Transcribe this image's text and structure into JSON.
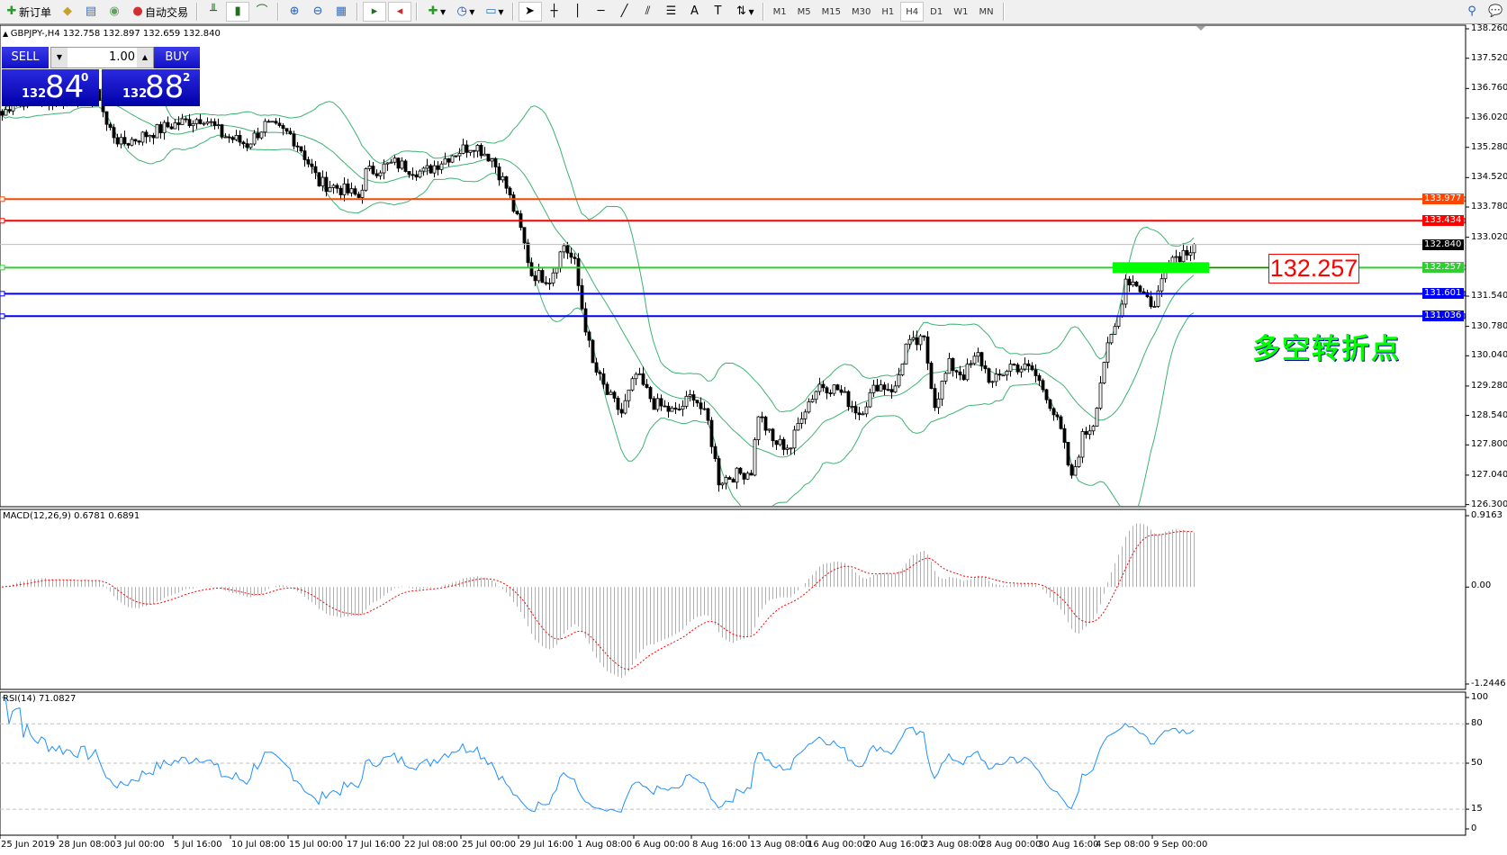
{
  "toolbar": {
    "new_order": "新订单",
    "auto_trading": "自动交易",
    "timeframes": [
      "M1",
      "M5",
      "M15",
      "M30",
      "H1",
      "H4",
      "D1",
      "W1",
      "MN"
    ],
    "active_timeframe": "H4"
  },
  "chart": {
    "symbol_info": "GBPJPY-,H4  132.758 132.897 132.659 132.840"
  },
  "trade_panel": {
    "sell": "SELL",
    "buy": "BUY",
    "lot": "1.00",
    "sell_price": {
      "prefix": "132",
      "big": "84",
      "sup": "0"
    },
    "buy_price": {
      "prefix": "132",
      "big": "88",
      "sup": "2"
    }
  },
  "price_axis": {
    "ticks": [
      "138.260",
      "137.520",
      "136.760",
      "136.020",
      "135.280",
      "134.520",
      "133.780",
      "133.020",
      "131.540",
      "130.780",
      "130.040",
      "129.280",
      "128.540",
      "127.800",
      "127.040",
      "126.300"
    ]
  },
  "levels": [
    {
      "price": "133.977",
      "color": "#ff4500"
    },
    {
      "price": "133.434",
      "color": "#ff0000"
    },
    {
      "price": "132.257",
      "color": "#32cd32"
    },
    {
      "price": "131.601",
      "color": "#0000ff"
    },
    {
      "price": "131.036",
      "color": "#0000ff"
    }
  ],
  "bid_line": {
    "price": "132.840",
    "color": "#000000"
  },
  "annotation": {
    "label": "132.257",
    "text": "多空转折点",
    "text_color": "#00ff00",
    "zone_color": "#00ff00"
  },
  "macd": {
    "label": "MACD(12,26,9) 0.6781 0.6891",
    "max": "0.9163",
    "zero": "0.00",
    "min": "-1.2446"
  },
  "rsi": {
    "label": "RSI(14) 71.0827",
    "ticks": [
      "100",
      "80",
      "50",
      "15",
      "0"
    ]
  },
  "time_axis": [
    "25 Jun 2019",
    "28 Jun 08:00",
    "3 Jul 00:00",
    "5 Jul 16:00",
    "10 Jul 08:00",
    "15 Jul 00:00",
    "17 Jul 16:00",
    "22 Jul 08:00",
    "25 Jul 00:00",
    "29 Jul 16:00",
    "1 Aug 08:00",
    "6 Aug 00:00",
    "8 Aug 16:00",
    "13 Aug 08:00",
    "16 Aug 00:00",
    "20 Aug 16:00",
    "23 Aug 08:00",
    "28 Aug 00:00",
    "30 Aug 16:00",
    "4 Sep 08:00",
    "9 Sep 00:00"
  ],
  "chart_data": {
    "type": "candlestick",
    "symbol": "GBPJPY-",
    "timeframe": "H4",
    "indicators": [
      "Bollinger Bands",
      "MACD(12,26,9)",
      "RSI(14)"
    ],
    "ylim": [
      126.3,
      138.26
    ],
    "close_path": [
      [
        0,
        136.09
      ],
      [
        3,
        136.45
      ],
      [
        27,
        136.57
      ],
      [
        29,
        135.84
      ],
      [
        33,
        135.36
      ],
      [
        40,
        135.6
      ],
      [
        47,
        135.84
      ],
      [
        56,
        136.04
      ],
      [
        61,
        135.6
      ],
      [
        68,
        135.36
      ],
      [
        73,
        135.84
      ],
      [
        80,
        135.6
      ],
      [
        83,
        135.24
      ],
      [
        88,
        134.39
      ],
      [
        93,
        134.27
      ],
      [
        99,
        134.03
      ],
      [
        101,
        134.64
      ],
      [
        109,
        134.88
      ],
      [
        117,
        134.64
      ],
      [
        125,
        135.12
      ],
      [
        131,
        135.36
      ],
      [
        136,
        135.0
      ],
      [
        140,
        134.27
      ],
      [
        144,
        133.19
      ],
      [
        147,
        132.1
      ],
      [
        152,
        131.98
      ],
      [
        156,
        132.83
      ],
      [
        159,
        132.34
      ],
      [
        161,
        131.25
      ],
      [
        164,
        129.81
      ],
      [
        168,
        129.08
      ],
      [
        172,
        128.6
      ],
      [
        176,
        129.56
      ],
      [
        181,
        128.84
      ],
      [
        187,
        128.6
      ],
      [
        192,
        129.08
      ],
      [
        196,
        128.36
      ],
      [
        199,
        126.91
      ],
      [
        203,
        127.03
      ],
      [
        208,
        127.15
      ],
      [
        210,
        128.6
      ],
      [
        214,
        127.87
      ],
      [
        219,
        127.75
      ],
      [
        222,
        128.6
      ],
      [
        227,
        129.32
      ],
      [
        232,
        129.2
      ],
      [
        238,
        128.6
      ],
      [
        243,
        129.32
      ],
      [
        248,
        129.2
      ],
      [
        251,
        130.29
      ],
      [
        256,
        130.41
      ],
      [
        259,
        128.84
      ],
      [
        263,
        129.81
      ],
      [
        267,
        129.56
      ],
      [
        271,
        130.05
      ],
      [
        275,
        129.32
      ],
      [
        280,
        129.81
      ],
      [
        286,
        129.68
      ],
      [
        290,
        129.08
      ],
      [
        294,
        128.12
      ],
      [
        297,
        126.91
      ],
      [
        300,
        128.0
      ],
      [
        303,
        128.36
      ],
      [
        306,
        129.93
      ],
      [
        310,
        131.01
      ],
      [
        312,
        131.98
      ],
      [
        315,
        131.86
      ],
      [
        318,
        131.5
      ],
      [
        320,
        131.25
      ],
      [
        322,
        131.98
      ],
      [
        323,
        132.46
      ],
      [
        327,
        132.58
      ],
      [
        331,
        132.84
      ]
    ]
  }
}
